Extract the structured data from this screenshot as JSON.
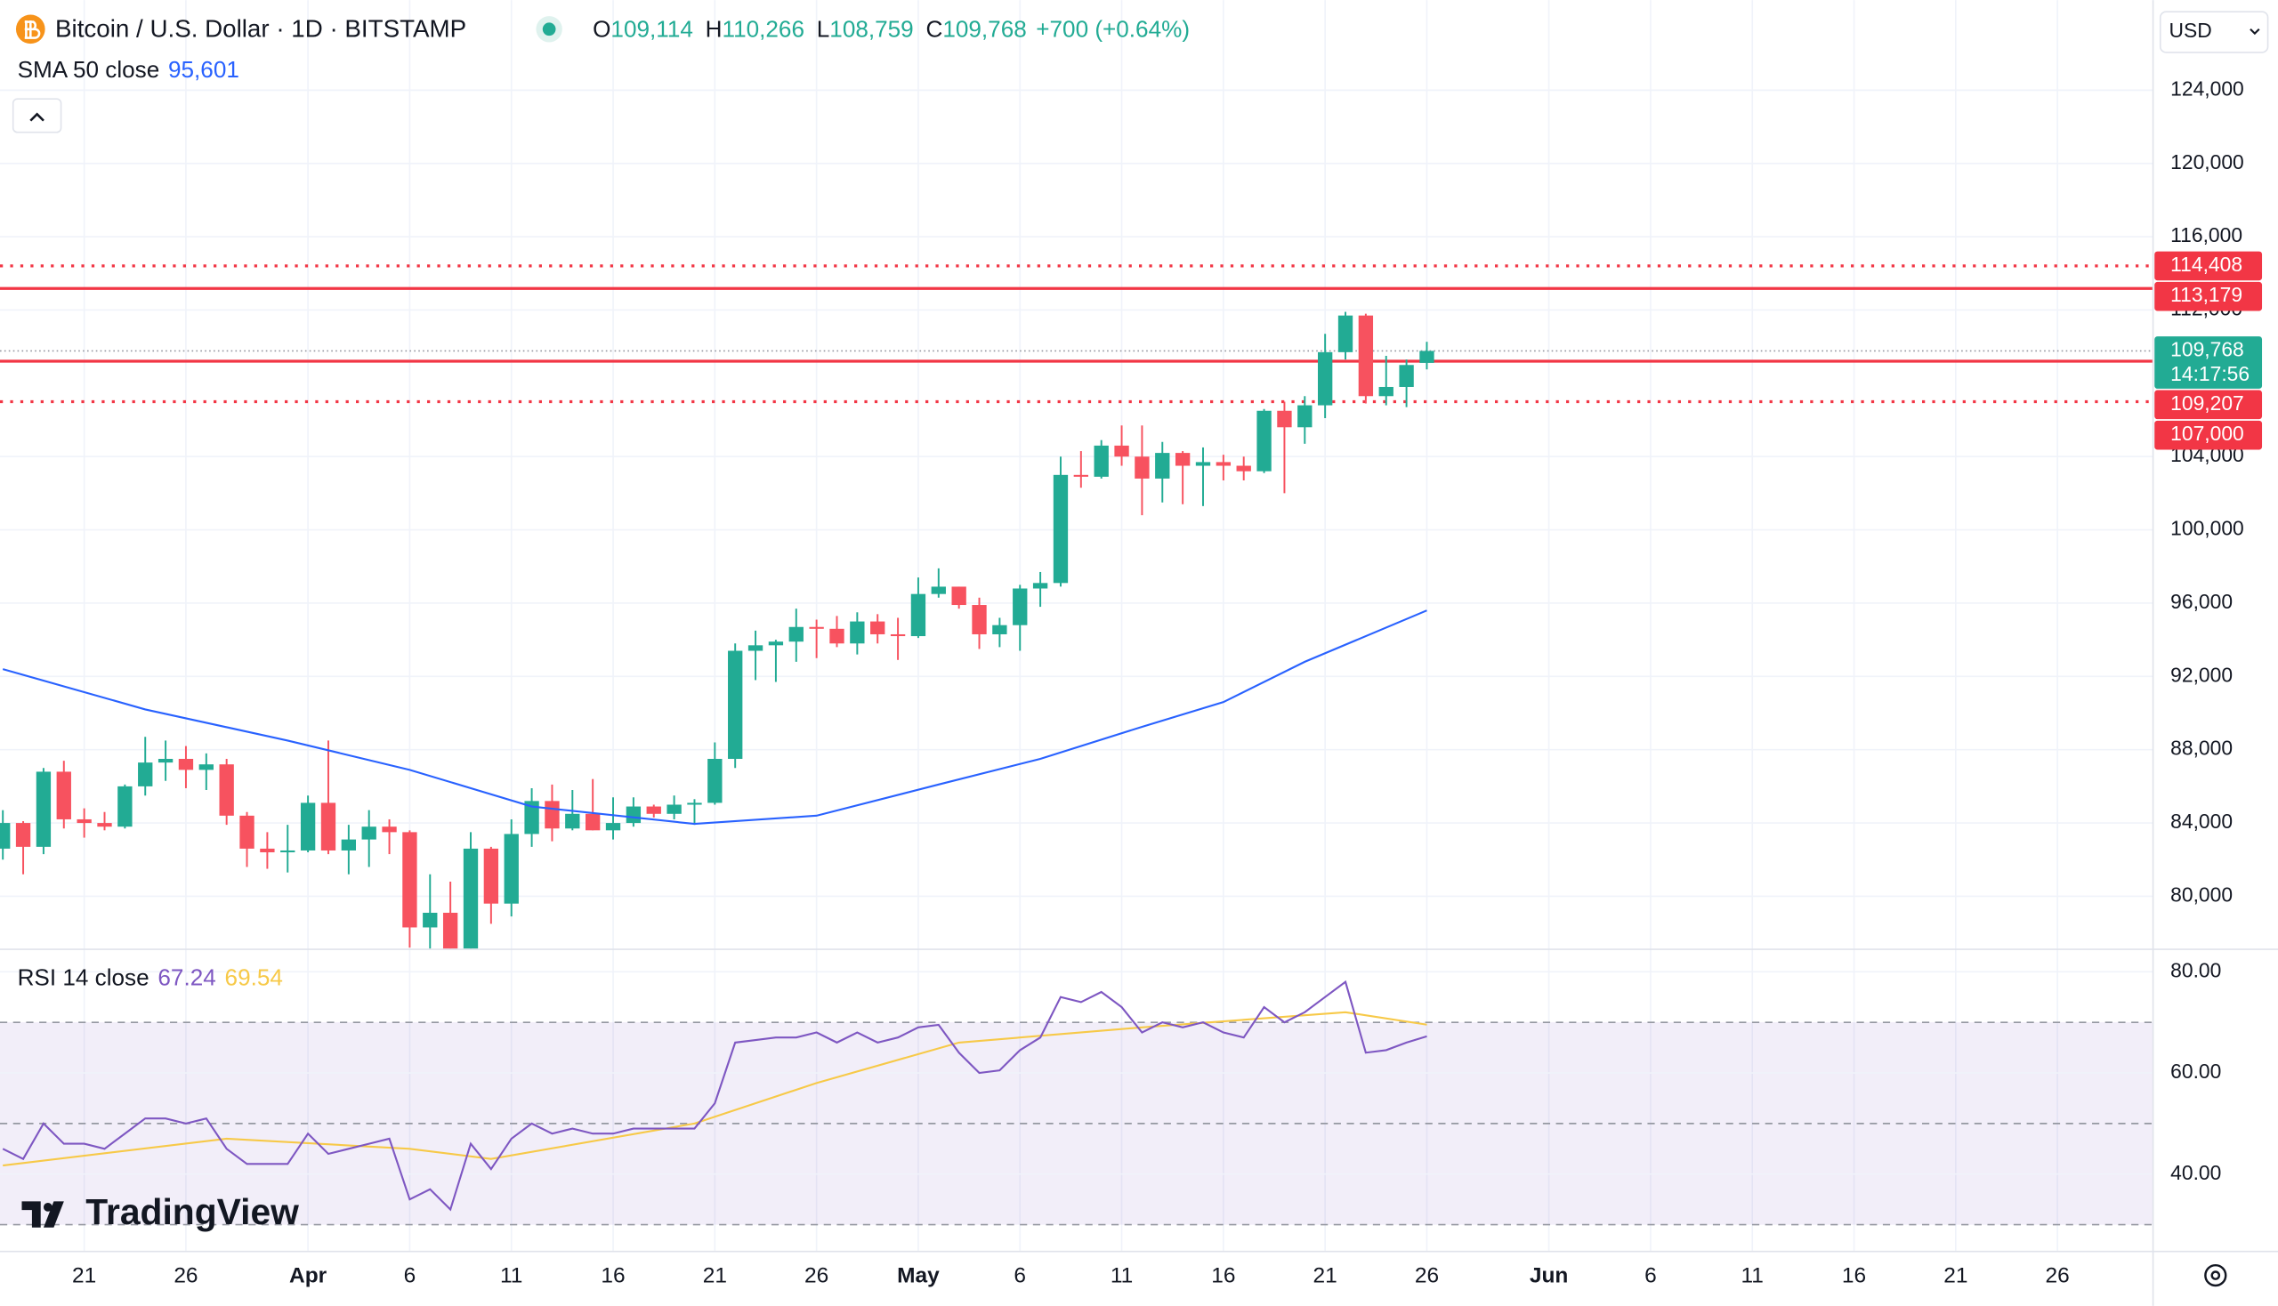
{
  "header": {
    "watermark": "TradingView",
    "currency": "USD"
  },
  "chart_data": [
    {
      "type": "candlestick",
      "title": "Bitcoin / U.S. Dollar · 1D · BITSTAMP",
      "ohlc_legend": {
        "open_label": "O",
        "open": "109,114",
        "high_label": "H",
        "high": "110,266",
        "low_label": "L",
        "low": "108,759",
        "close_label": "C",
        "close": "109,768",
        "change": "+700 (+0.64%)"
      },
      "x": [
        16,
        17,
        18,
        19,
        20,
        21,
        22,
        23,
        24,
        25,
        26,
        27,
        28,
        29,
        30,
        31,
        32,
        33,
        34,
        35,
        36,
        37,
        38,
        39,
        40,
        41,
        42,
        43,
        44,
        45,
        46,
        47,
        48,
        49,
        50,
        51,
        52,
        53,
        54,
        55,
        56,
        57,
        58,
        59,
        60,
        61,
        62,
        63,
        64,
        65,
        66,
        67,
        68,
        69,
        70,
        71,
        72,
        73,
        74,
        75,
        76,
        77,
        78,
        79,
        80,
        81,
        82,
        83,
        84,
        85,
        86
      ],
      "open": [
        82600,
        84000,
        82700,
        86800,
        84200,
        84000,
        83800,
        86000,
        87300,
        87500,
        86900,
        87200,
        84400,
        82600,
        82400,
        82500,
        85100,
        82500,
        83100,
        83800,
        83500,
        78300,
        79100,
        76300,
        82600,
        79600,
        83400,
        85200,
        83700,
        84500,
        83600,
        84000,
        84900,
        84500,
        85000,
        85100,
        87500,
        93400,
        93700,
        93900,
        94700,
        94600,
        93800,
        95000,
        94300,
        94200,
        96500,
        96900,
        95900,
        94300,
        94800,
        96800,
        97100,
        103000,
        102900,
        104600,
        104000,
        102800,
        104200,
        103500,
        103700,
        103500,
        103200,
        106500,
        105600,
        106800,
        109700,
        111700,
        107300,
        107800,
        109114
      ],
      "high": [
        84700,
        84100,
        87000,
        87400,
        84800,
        84600,
        86100,
        88700,
        88500,
        88200,
        87800,
        87500,
        84600,
        83500,
        83900,
        85500,
        88500,
        83900,
        84700,
        84200,
        83600,
        81200,
        80800,
        83500,
        82700,
        84200,
        85900,
        86100,
        85800,
        86400,
        85400,
        85400,
        85000,
        85500,
        85300,
        88400,
        93800,
        94500,
        94000,
        95700,
        95100,
        95300,
        95500,
        95400,
        95200,
        97400,
        97900,
        96900,
        96300,
        95200,
        97000,
        97700,
        104000,
        104300,
        104900,
        105700,
        105700,
        104800,
        104300,
        104500,
        104100,
        104000,
        106600,
        107000,
        107300,
        110700,
        111900,
        111800,
        109500,
        109300,
        110266
      ],
      "low": [
        82000,
        81200,
        82300,
        83700,
        83200,
        83600,
        83700,
        85500,
        86300,
        85900,
        85800,
        83900,
        81600,
        81500,
        81300,
        82400,
        82300,
        81200,
        81600,
        82300,
        77200,
        74500,
        76200,
        74600,
        78500,
        78900,
        82700,
        83000,
        83600,
        83600,
        83100,
        83800,
        84300,
        84200,
        83900,
        85000,
        87000,
        91800,
        91700,
        92800,
        93000,
        93600,
        93200,
        93800,
        92900,
        94100,
        96300,
        95700,
        93500,
        93600,
        93400,
        95800,
        96900,
        102300,
        102800,
        103500,
        100800,
        101500,
        101400,
        101300,
        102700,
        102700,
        103100,
        102000,
        104700,
        106100,
        109300,
        106900,
        106800,
        106700,
        108759
      ],
      "close": [
        84000,
        82700,
        86800,
        84200,
        84000,
        83800,
        86000,
        87300,
        87500,
        86900,
        87200,
        84400,
        82600,
        82400,
        82500,
        85100,
        82500,
        83100,
        83800,
        83500,
        78300,
        79100,
        76300,
        82600,
        79600,
        83400,
        85200,
        83700,
        84500,
        83600,
        84000,
        84900,
        84500,
        85000,
        85100,
        87500,
        93400,
        93700,
        93900,
        94700,
        94600,
        93800,
        95000,
        94300,
        94200,
        96500,
        96900,
        95900,
        94300,
        94800,
        96800,
        97100,
        103000,
        102900,
        104600,
        104000,
        102800,
        104200,
        103500,
        103700,
        103500,
        103200,
        106500,
        105600,
        106800,
        109700,
        111700,
        107300,
        107800,
        109000,
        109768
      ],
      "up_color": "#22ab94",
      "down_color": "#f7525f",
      "overlay": {
        "name": "SMA 50 close",
        "value_label": "95,601",
        "color": "#2962ff",
        "x": [
          16,
          23,
          30,
          36,
          42,
          50,
          56,
          62,
          67,
          72,
          76,
          80,
          86
        ],
        "values": [
          92400,
          90200,
          88500,
          86900,
          84900,
          83950,
          84400,
          86100,
          87500,
          89250,
          90600,
          92800,
          95601
        ]
      },
      "levels": [
        {
          "value": 114408,
          "label": "114,408",
          "style": "dotted",
          "color": "#f23645"
        },
        {
          "value": 113179,
          "label": "113,179",
          "style": "solid",
          "color": "#f23645"
        },
        {
          "value": 109207,
          "label": "109,207",
          "style": "solid",
          "color": "#f23645"
        },
        {
          "value": 107000,
          "label": "107,000",
          "style": "dotted",
          "color": "#f23645"
        }
      ],
      "last_price": {
        "value": 109768,
        "label": "109,768",
        "countdown": "14:17:56",
        "color": "#22ab94"
      },
      "xlim": [
        15.86,
        121.7
      ],
      "ylim": [
        77145,
        128917
      ],
      "yticks": [
        {
          "value": 80000,
          "label": "80,000"
        },
        {
          "value": 84000,
          "label": "84,000"
        },
        {
          "value": 88000,
          "label": "88,000"
        },
        {
          "value": 92000,
          "label": "92,000"
        },
        {
          "value": 96000,
          "label": "96,000"
        },
        {
          "value": 100000,
          "label": "100,000"
        },
        {
          "value": 104000,
          "label": "104,000"
        },
        {
          "value": 112000,
          "label": "112,000"
        },
        {
          "value": 116000,
          "label": "116,000"
        },
        {
          "value": 120000,
          "label": "120,000"
        },
        {
          "value": 124000,
          "label": "124,000"
        }
      ],
      "xticks": [
        {
          "value": 20,
          "label": "21"
        },
        {
          "value": 25,
          "label": "26"
        },
        {
          "value": 31,
          "label": "Apr"
        },
        {
          "value": 36,
          "label": "6"
        },
        {
          "value": 41,
          "label": "11"
        },
        {
          "value": 46,
          "label": "16"
        },
        {
          "value": 51,
          "label": "21"
        },
        {
          "value": 56,
          "label": "26"
        },
        {
          "value": 61,
          "label": "May"
        },
        {
          "value": 66,
          "label": "6"
        },
        {
          "value": 71,
          "label": "11"
        },
        {
          "value": 76,
          "label": "16"
        },
        {
          "value": 81,
          "label": "21"
        },
        {
          "value": 86,
          "label": "26"
        },
        {
          "value": 92,
          "label": "Jun"
        },
        {
          "value": 97,
          "label": "6"
        },
        {
          "value": 102,
          "label": "11"
        },
        {
          "value": 107,
          "label": "16"
        },
        {
          "value": 112,
          "label": "21"
        },
        {
          "value": 117,
          "label": "26"
        }
      ],
      "grid": true
    },
    {
      "type": "line",
      "title": "RSI 14 close",
      "series": [
        {
          "value_label": "67.24",
          "color": "#7e57c2",
          "x": [
            16,
            17,
            18,
            19,
            20,
            21,
            22,
            23,
            24,
            25,
            26,
            27,
            28,
            29,
            30,
            31,
            32,
            33,
            34,
            35,
            36,
            37,
            38,
            39,
            40,
            41,
            42,
            43,
            44,
            45,
            46,
            47,
            48,
            49,
            50,
            51,
            52,
            53,
            54,
            55,
            56,
            57,
            58,
            59,
            60,
            61,
            62,
            63,
            64,
            65,
            66,
            67,
            68,
            69,
            70,
            71,
            72,
            73,
            74,
            75,
            76,
            77,
            78,
            79,
            80,
            81,
            82,
            83,
            84,
            85,
            86
          ],
          "values": [
            45,
            43,
            50,
            46,
            46,
            45,
            48,
            51,
            51,
            50,
            51,
            45,
            42,
            42,
            42,
            48,
            44,
            45,
            46,
            47,
            35,
            37,
            33,
            46,
            41,
            47,
            50,
            48,
            49,
            48,
            48,
            49,
            49,
            49,
            49,
            54,
            66,
            66.5,
            67,
            67,
            68,
            66,
            68,
            66,
            67,
            69,
            69.5,
            64,
            60,
            60.5,
            64.5,
            67,
            75,
            74,
            76,
            73,
            68,
            70,
            69,
            70,
            68,
            67,
            73,
            70,
            72,
            75,
            78,
            64,
            64.5,
            66,
            67.24
          ]
        },
        {
          "value_label": "69.54",
          "color": "#f7c948",
          "x": [
            16,
            27,
            36,
            40,
            50,
            56,
            63,
            72,
            82,
            86
          ],
          "values": [
            41.7,
            47,
            45,
            43,
            50,
            58,
            66,
            69,
            72,
            69.54
          ]
        }
      ],
      "levels": [
        70,
        50,
        30
      ],
      "xlim": [
        15.86,
        121.7
      ],
      "ylim": [
        24.86,
        84.29
      ],
      "yticks": [
        {
          "value": 40,
          "label": "40.00"
        },
        {
          "value": 60,
          "label": "60.00"
        },
        {
          "value": 80,
          "label": "80.00"
        }
      ],
      "grid": true
    }
  ]
}
